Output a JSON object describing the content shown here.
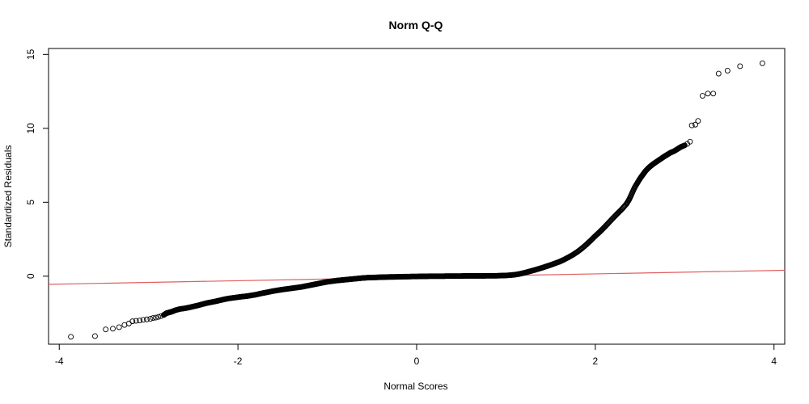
{
  "chart_data": {
    "type": "scatter",
    "title": "Norm Q-Q",
    "xlabel": "Normal Scores",
    "ylabel": "Standardized Residuals",
    "xlim": [
      -4.12,
      4.12
    ],
    "ylim": [
      -4.6,
      15.4
    ],
    "x_ticks": [
      -4,
      -2,
      0,
      2,
      4
    ],
    "y_ticks": [
      0,
      5,
      10,
      15
    ],
    "x_tick_labels": [
      "-4",
      "-2",
      "0",
      "2",
      "4"
    ],
    "y_tick_labels": [
      "0",
      "5",
      "10",
      "15"
    ],
    "grid": false,
    "legend": "none",
    "point_color": "#000000",
    "reference_line": {
      "color": "#e06060",
      "x": [
        -4.12,
        4.12
      ],
      "y": [
        -0.55,
        0.4
      ]
    },
    "series": [
      {
        "points": [
          [
            -3.87,
            -4.1
          ],
          [
            -3.6,
            -4.05
          ],
          [
            -3.48,
            -3.6
          ],
          [
            -3.4,
            -3.55
          ],
          [
            -3.33,
            -3.45
          ],
          [
            -3.27,
            -3.3
          ],
          [
            -3.22,
            -3.2
          ],
          [
            -3.18,
            -3.05
          ],
          [
            -3.14,
            -3.02
          ],
          [
            -3.1,
            -3.0
          ],
          [
            -3.06,
            -2.95
          ],
          [
            -3.02,
            -2.92
          ],
          [
            -2.98,
            -2.88
          ],
          [
            -2.95,
            -2.83
          ],
          [
            -2.92,
            -2.8
          ],
          [
            -2.89,
            -2.75
          ],
          [
            -2.86,
            -2.7
          ],
          [
            -2.83,
            -2.62
          ],
          [
            -2.8,
            -2.5
          ],
          [
            -2.77,
            -2.45
          ],
          [
            -2.74,
            -2.4
          ],
          [
            -2.7,
            -2.3
          ],
          [
            -2.65,
            -2.22
          ],
          [
            -2.6,
            -2.18
          ],
          [
            -2.55,
            -2.12
          ],
          [
            -2.5,
            -2.05
          ],
          [
            -2.45,
            -1.98
          ],
          [
            -2.4,
            -1.9
          ],
          [
            -2.35,
            -1.82
          ],
          [
            -2.3,
            -1.76
          ],
          [
            -2.25,
            -1.7
          ],
          [
            -2.2,
            -1.63
          ],
          [
            -2.15,
            -1.56
          ],
          [
            -2.1,
            -1.5
          ],
          [
            -2.05,
            -1.46
          ],
          [
            -2.0,
            -1.42
          ],
          [
            -1.95,
            -1.38
          ],
          [
            -1.9,
            -1.35
          ],
          [
            -1.85,
            -1.3
          ],
          [
            -1.8,
            -1.25
          ],
          [
            -1.75,
            -1.18
          ],
          [
            -1.7,
            -1.12
          ],
          [
            -1.65,
            -1.06
          ],
          [
            -1.6,
            -1.0
          ],
          [
            -1.55,
            -0.95
          ],
          [
            -1.5,
            -0.9
          ],
          [
            -1.45,
            -0.86
          ],
          [
            -1.4,
            -0.82
          ],
          [
            -1.35,
            -0.78
          ],
          [
            -1.3,
            -0.74
          ],
          [
            -1.25,
            -0.68
          ],
          [
            -1.2,
            -0.62
          ],
          [
            -1.15,
            -0.56
          ],
          [
            -1.1,
            -0.5
          ],
          [
            -1.05,
            -0.44
          ],
          [
            -1.0,
            -0.38
          ],
          [
            -0.95,
            -0.34
          ],
          [
            -0.9,
            -0.3
          ],
          [
            -0.85,
            -0.27
          ],
          [
            -0.8,
            -0.24
          ],
          [
            -0.75,
            -0.21
          ],
          [
            -0.7,
            -0.18
          ],
          [
            -0.65,
            -0.15
          ],
          [
            -0.6,
            -0.12
          ],
          [
            -0.55,
            -0.1
          ],
          [
            -0.5,
            -0.09
          ],
          [
            -0.45,
            -0.08
          ],
          [
            -0.4,
            -0.07
          ],
          [
            -0.35,
            -0.06
          ],
          [
            -0.3,
            -0.05
          ],
          [
            -0.25,
            -0.05
          ],
          [
            -0.2,
            -0.04
          ],
          [
            -0.15,
            -0.03
          ],
          [
            -0.1,
            -0.03
          ],
          [
            -0.05,
            -0.02
          ],
          [
            0.0,
            -0.02
          ],
          [
            0.05,
            -0.01
          ],
          [
            0.1,
            -0.01
          ],
          [
            0.15,
            0.0
          ],
          [
            0.2,
            0.0
          ],
          [
            0.25,
            0.0
          ],
          [
            0.3,
            0.0
          ],
          [
            0.35,
            0.01
          ],
          [
            0.4,
            0.01
          ],
          [
            0.45,
            0.01
          ],
          [
            0.5,
            0.01
          ],
          [
            0.55,
            0.02
          ],
          [
            0.6,
            0.02
          ],
          [
            0.65,
            0.02
          ],
          [
            0.7,
            0.02
          ],
          [
            0.75,
            0.02
          ],
          [
            0.8,
            0.03
          ],
          [
            0.85,
            0.03
          ],
          [
            0.9,
            0.03
          ],
          [
            0.95,
            0.04
          ],
          [
            1.0,
            0.05
          ],
          [
            1.05,
            0.07
          ],
          [
            1.1,
            0.1
          ],
          [
            1.15,
            0.15
          ],
          [
            1.2,
            0.22
          ],
          [
            1.25,
            0.3
          ],
          [
            1.3,
            0.38
          ],
          [
            1.35,
            0.47
          ],
          [
            1.4,
            0.56
          ],
          [
            1.45,
            0.66
          ],
          [
            1.5,
            0.76
          ],
          [
            1.55,
            0.87
          ],
          [
            1.6,
            0.98
          ],
          [
            1.65,
            1.12
          ],
          [
            1.7,
            1.28
          ],
          [
            1.75,
            1.45
          ],
          [
            1.8,
            1.65
          ],
          [
            1.85,
            1.88
          ],
          [
            1.9,
            2.14
          ],
          [
            1.95,
            2.42
          ],
          [
            2.0,
            2.72
          ],
          [
            2.05,
            3.0
          ],
          [
            2.1,
            3.3
          ],
          [
            2.15,
            3.62
          ],
          [
            2.2,
            3.94
          ],
          [
            2.25,
            4.25
          ],
          [
            2.3,
            4.55
          ],
          [
            2.35,
            4.9
          ],
          [
            2.38,
            5.2
          ],
          [
            2.41,
            5.6
          ],
          [
            2.44,
            6.0
          ],
          [
            2.47,
            6.3
          ],
          [
            2.5,
            6.6
          ],
          [
            2.53,
            6.85
          ],
          [
            2.56,
            7.1
          ],
          [
            2.6,
            7.35
          ],
          [
            2.64,
            7.55
          ],
          [
            2.68,
            7.72
          ],
          [
            2.72,
            7.88
          ],
          [
            2.76,
            8.05
          ],
          [
            2.8,
            8.2
          ],
          [
            2.84,
            8.35
          ],
          [
            2.88,
            8.45
          ],
          [
            2.92,
            8.6
          ],
          [
            2.96,
            8.75
          ],
          [
            3.0,
            8.85
          ],
          [
            3.03,
            8.95
          ],
          [
            3.06,
            9.1
          ],
          [
            3.08,
            10.2
          ],
          [
            3.12,
            10.25
          ],
          [
            3.15,
            10.5
          ],
          [
            3.2,
            12.2
          ],
          [
            3.26,
            12.35
          ],
          [
            3.32,
            12.35
          ],
          [
            3.38,
            13.7
          ],
          [
            3.48,
            13.9
          ],
          [
            3.62,
            14.2
          ],
          [
            3.87,
            14.4
          ]
        ]
      }
    ]
  }
}
